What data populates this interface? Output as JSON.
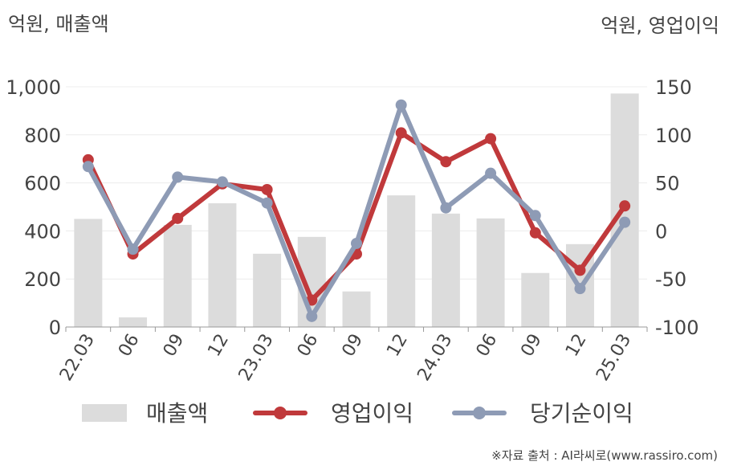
{
  "chart_data": {
    "type": "bar+line",
    "left_axis_label": "억원, 매출액",
    "right_axis_label": "억원, 영업이익",
    "categories": [
      "22.03",
      "06",
      "09",
      "12",
      "23.03",
      "06",
      "09",
      "12",
      "24.03",
      "06",
      "09",
      "12",
      "25.03"
    ],
    "ylim_left": [
      0,
      1000
    ],
    "yticks_left": [
      0,
      200,
      400,
      600,
      800,
      1000
    ],
    "ytick_labels_left": [
      "0",
      "200",
      "400",
      "600",
      "800",
      "1,000"
    ],
    "ylim_right": [
      -100,
      150
    ],
    "yticks_right": [
      -100,
      -50,
      0,
      50,
      100,
      150
    ],
    "ytick_labels_right": [
      "-100",
      "-50",
      "0",
      "50",
      "100",
      "150"
    ],
    "grid": true,
    "series": [
      {
        "name": "매출액",
        "type": "bar",
        "axis": "left",
        "color": "#dcdcdc",
        "values": [
          450,
          40,
          425,
          515,
          305,
          375,
          148,
          548,
          472,
          452,
          225,
          345,
          972
        ]
      },
      {
        "name": "영업이익",
        "type": "line",
        "axis": "right",
        "color": "#c0393b",
        "values": [
          74,
          -24,
          13,
          49,
          43,
          -72,
          -24,
          102,
          72,
          96,
          -2,
          -41,
          26
        ]
      },
      {
        "name": "당기순이익",
        "type": "line",
        "axis": "right",
        "color": "#8e9bb5",
        "values": [
          67,
          -19,
          56,
          51,
          29,
          -89,
          -13,
          131,
          24,
          60,
          16,
          -60,
          9
        ]
      }
    ],
    "legend_position": "bottom",
    "source_note": "※자료 출처 : AI라씨로(www.rassiro.com)"
  }
}
